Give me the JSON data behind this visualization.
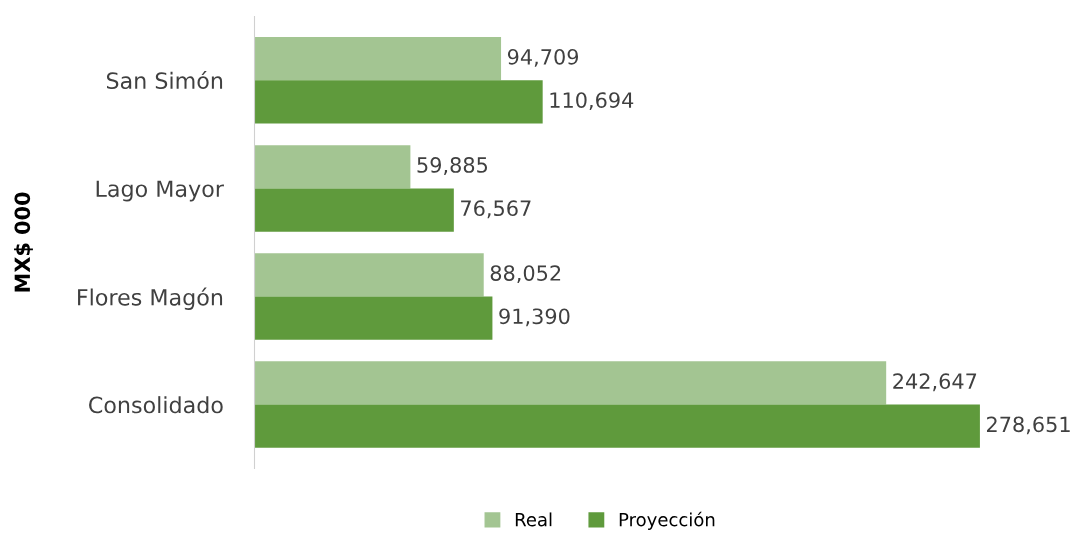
{
  "chart_data": {
    "type": "bar",
    "orientation": "horizontal",
    "ylabel": "MX$ 000",
    "categories": [
      "San Simón",
      "Lago Mayor",
      "Flores Magón",
      "Consolidado"
    ],
    "series": [
      {
        "name": "Real",
        "color": "#a3c592",
        "values": [
          94709,
          59885,
          88052,
          242647
        ],
        "value_labels": [
          "94,709",
          "59,885",
          "88,052",
          "242,647"
        ]
      },
      {
        "name": "Proyección",
        "color": "#5f9a3c",
        "values": [
          110694,
          76567,
          91390,
          278651
        ],
        "value_labels": [
          "110,694",
          "76,567",
          "91,390",
          "278,651"
        ]
      }
    ],
    "legend": "bottom",
    "grid": false
  }
}
